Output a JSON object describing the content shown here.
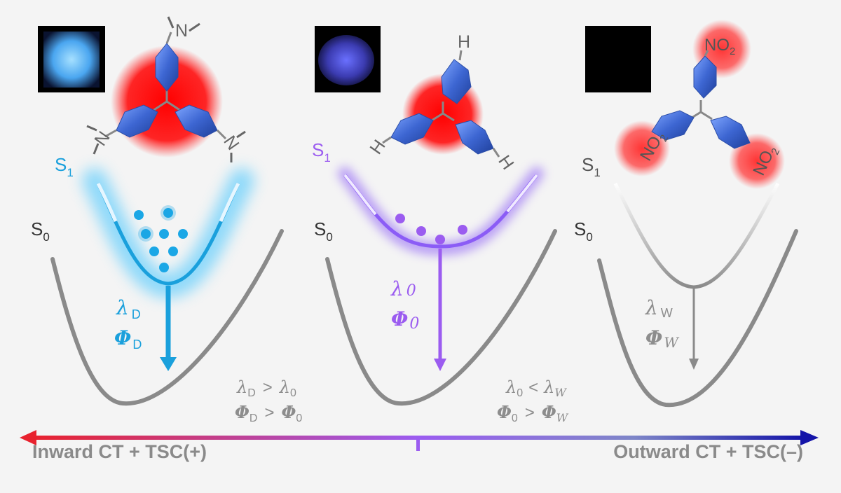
{
  "colors": {
    "donor": "#12a6dc",
    "neutral": "#9b5cf0",
    "withdrawing": "#8d8d8d",
    "curve_gray": "#8a8a8a",
    "halo_red": "#ff1a1a",
    "ring_blue": "#3f6fd6",
    "axis_left": "#e8222e",
    "axis_right": "#1414a8"
  },
  "icons": {
    "crystal_photo_donor": "bright-blue-crystal-sample",
    "crystal_photo_neutral": "dim-blue-crystal-sample",
    "crystal_photo_withdrawing": "dark-no-emission-sample",
    "molecule": "triphenylmethyl-radical"
  },
  "panels": [
    {
      "id": "donor",
      "substituent": "N",
      "s1": {
        "base": "S",
        "sub": "1"
      },
      "s0": {
        "base": "S",
        "sub": "0"
      },
      "lambda": {
        "sym": "λ",
        "sub": "D"
      },
      "phi": {
        "sym": "Φ",
        "sub": "D"
      }
    },
    {
      "id": "neutral",
      "substituent": "H",
      "s1": {
        "base": "S",
        "sub": "1"
      },
      "s0": {
        "base": "S",
        "sub": "0"
      },
      "lambda": {
        "sym": "λ",
        "sub": "0"
      },
      "phi": {
        "sym": "Φ",
        "sub": "0"
      }
    },
    {
      "id": "withdrawing",
      "substituent": "NO",
      "substituent_sub": "2",
      "s1": {
        "base": "S",
        "sub": "1"
      },
      "s0": {
        "base": "S",
        "sub": "0"
      },
      "lambda": {
        "sym": "λ",
        "sub": "W"
      },
      "phi": {
        "sym": "Φ",
        "sub": "W"
      }
    }
  ],
  "comparisons": {
    "left": {
      "line1": {
        "a": "λ",
        "a_sub": "D",
        "op": ">",
        "b": "λ",
        "b_sub": "0"
      },
      "line2": {
        "a": "Φ",
        "a_sub": "D",
        "op": ">",
        "b": "Φ",
        "b_sub": "0"
      }
    },
    "right": {
      "line1": {
        "a": "λ",
        "a_sub": "0",
        "op": "<",
        "b": "λ",
        "b_sub": "W"
      },
      "line2": {
        "a": "Φ",
        "a_sub": "0",
        "op": ">",
        "b": "Φ",
        "b_sub": "W"
      }
    }
  },
  "axis": {
    "left_label": "Inward CT + TSC(+)",
    "right_label": "Outward CT + TSC(–)"
  }
}
